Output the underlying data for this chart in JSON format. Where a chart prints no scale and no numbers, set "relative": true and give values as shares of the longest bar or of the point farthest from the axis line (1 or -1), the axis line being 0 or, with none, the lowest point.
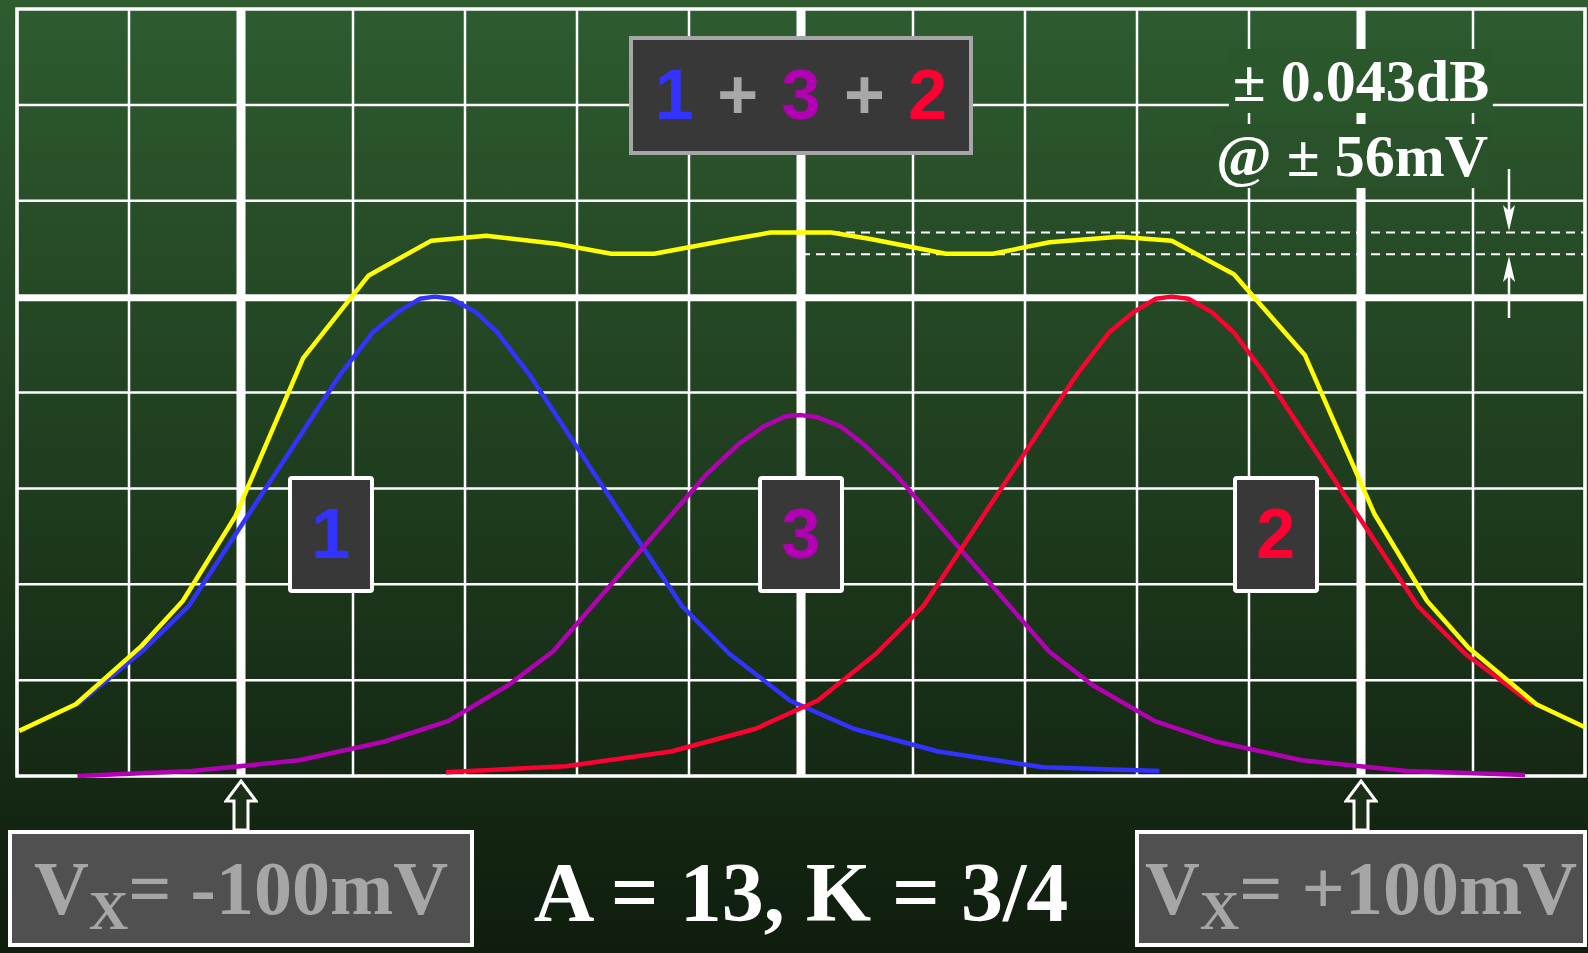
{
  "chart_data": {
    "type": "line",
    "relative": true,
    "xlim": [
      -140,
      140
    ],
    "xticks": [
      {
        "value": -140,
        "label": null
      },
      {
        "value": -120,
        "label": null
      },
      {
        "value": -100,
        "label": "V$_{X}$= -100mV"
      },
      {
        "value": -80,
        "label": null
      },
      {
        "value": -60,
        "label": null
      },
      {
        "value": -40,
        "label": null
      },
      {
        "value": -20,
        "label": null
      },
      {
        "value": 20,
        "label": null
      },
      {
        "value": 40,
        "label": null
      },
      {
        "value": 60,
        "label": null
      },
      {
        "value": 80,
        "label": null
      },
      {
        "value": 100,
        "label": "V$_{X}$= +100mV"
      },
      {
        "value": 120,
        "label": null
      },
      {
        "value": 140,
        "label": null
      }
    ],
    "tick_labels": "x",
    "grid": true,
    "series": [
      {
        "name": "1",
        "color": "#3333ff",
        "x": [
          -129.2,
          -117.4,
          -109.4,
          -82.2,
          -76.5,
          -72.1,
          -68.1,
          -65.4,
          -62.4,
          -58.0,
          -54.3,
          -48.6,
          -34.6,
          -21.2,
          -12.8,
          -2.0,
          9.4,
          24.5,
          43.3,
          64.0
        ],
        "values": [
          0.132,
          0.232,
          0.312,
          0.74,
          0.816,
          0.853,
          0.878,
          0.882,
          0.878,
          0.853,
          0.817,
          0.74,
          0.52,
          0.312,
          0.225,
          0.139,
          0.087,
          0.045,
          0.016,
          0.009
        ]
      },
      {
        "name": "3",
        "color": "#b400b4",
        "x": [
          -129.2,
          -108.7,
          -89.6,
          -74.5,
          -63.0,
          -52.3,
          -44.3,
          -16.8,
          -11.1,
          -6.7,
          -2.7,
          0,
          3.0,
          7.1,
          11.1,
          16.8,
          44.3,
          52.1,
          63.2,
          74.2,
          89.4,
          108.2,
          129.3
        ],
        "values": [
          0,
          0.009,
          0.029,
          0.063,
          0.101,
          0.167,
          0.229,
          0.556,
          0.611,
          0.643,
          0.662,
          0.664,
          0.66,
          0.643,
          0.611,
          0.556,
          0.229,
          0.167,
          0.101,
          0.063,
          0.029,
          0.009,
          0.002
        ]
      },
      {
        "name": "2",
        "color": "#ff0033",
        "x": [
          -63.4,
          -42.0,
          -23.2,
          -8.1,
          3.0,
          13.4,
          21.8,
          49.4,
          55.1,
          59.3,
          63.3,
          66.2,
          69.2,
          73.4,
          77.3,
          82.8,
          97.1,
          110.2,
          118.6,
          130.7
        ],
        "values": [
          0.007,
          0.018,
          0.045,
          0.087,
          0.139,
          0.225,
          0.312,
          0.741,
          0.817,
          0.853,
          0.878,
          0.882,
          0.878,
          0.853,
          0.816,
          0.74,
          0.516,
          0.312,
          0.225,
          0.132
        ]
      },
      {
        "color": "#ffff00",
        "x": [
          -139.6,
          -129.5,
          -117.8,
          -110.4,
          -101.0,
          -88.9,
          -77.2,
          -66.0,
          -56.2,
          -43.4,
          -33.9,
          -26.2,
          -12.1,
          -5.4,
          5.4,
          12.4,
          25.9,
          34.3,
          44.4,
          56.8,
          66.2,
          77.3,
          90.0,
          102.4,
          111.8,
          119.2,
          131.3,
          139.9
        ],
        "values": [
          0.083,
          0.132,
          0.239,
          0.322,
          0.478,
          0.769,
          0.921,
          0.985,
          0.994,
          0.979,
          0.961,
          0.961,
          0.988,
          1,
          1,
          0.988,
          0.961,
          0.961,
          0.982,
          0.992,
          0.985,
          0.923,
          0.774,
          0.482,
          0.322,
          0.236,
          0.132,
          0.09
        ]
      }
    ],
    "ref_lines": [
      {
        "axis": "x",
        "value": 0,
        "color": "#ffffff"
      },
      {
        "axis": "y",
        "value": 0.88,
        "color": "#ffffff"
      },
      {
        "axis": "y",
        "value": 1,
        "color": "#ffffff",
        "line_style": "dashed"
      },
      {
        "axis": "y",
        "value": 0.96,
        "color": "#ffffff",
        "line_style": "dashed"
      }
    ],
    "annotations": [
      "1 + 3 + 2",
      "± 0.043dB",
      "@ ± 56mV",
      "A = 13, K = 3/4"
    ]
  }
}
